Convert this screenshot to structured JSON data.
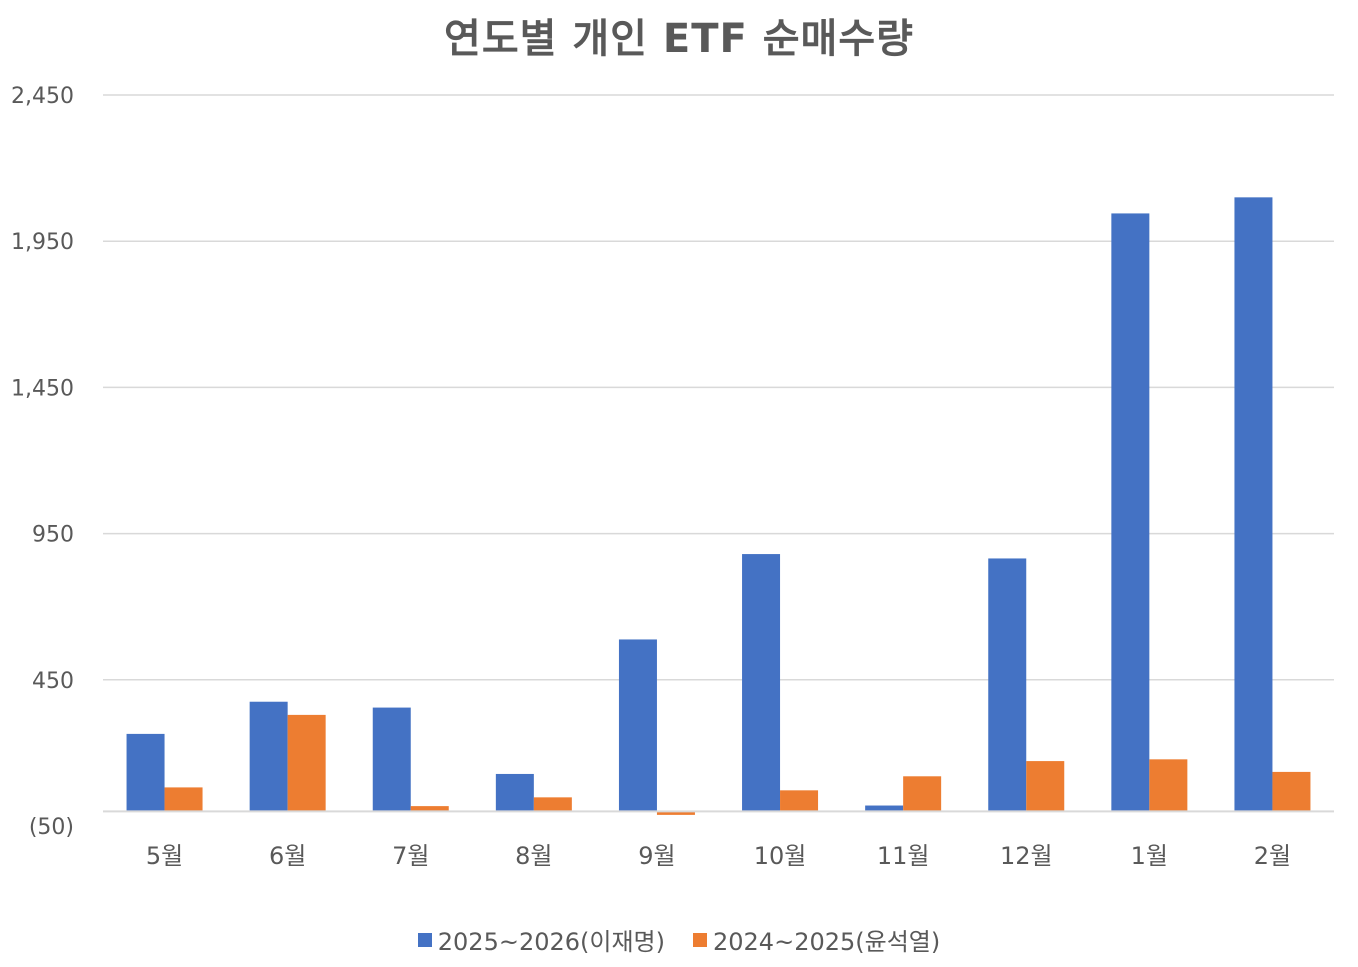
{
  "chart_data": {
    "type": "bar",
    "title": "연도별 개인 ETF 순매수량",
    "categories": [
      "5월",
      "6월",
      "7월",
      "8월",
      "9월",
      "10월",
      "11월",
      "12월",
      "1월",
      "2월"
    ],
    "series": [
      {
        "name": "2025~2026(이재명)",
        "color": "#4472C4",
        "values": [
          265,
          375,
          355,
          128,
          588,
          880,
          20,
          865,
          2045,
          2100
        ]
      },
      {
        "name": "2024~2025(윤석열)",
        "color": "#ED7D31",
        "values": [
          82,
          330,
          18,
          48,
          -12,
          72,
          120,
          172,
          178,
          135
        ]
      }
    ],
    "y_ticks": [
      -50,
      450,
      950,
      1450,
      1950,
      2450
    ],
    "y_tick_labels": [
      "(50)",
      "450",
      "950",
      "1,450",
      "1,950",
      "2,450"
    ],
    "ylim": [
      -50,
      2450
    ],
    "xlabel": "",
    "ylabel": "",
    "grid": true,
    "legend_position": "bottom"
  }
}
